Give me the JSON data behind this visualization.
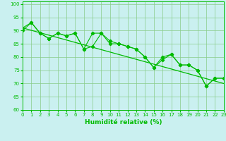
{
  "line1_x": [
    0,
    1,
    2,
    3,
    4,
    5,
    6,
    7,
    8,
    9,
    10,
    11,
    12,
    13,
    14,
    15,
    16,
    17,
    18,
    19,
    20,
    21,
    22,
    23
  ],
  "line1_y": [
    90,
    93,
    89,
    87,
    89,
    88,
    89,
    83,
    89,
    89,
    85,
    85,
    84,
    83,
    80,
    76,
    80,
    81,
    77,
    77,
    75,
    69,
    72,
    72
  ],
  "line2_x": [
    0,
    1,
    2,
    3,
    4,
    5,
    6,
    7,
    8,
    9,
    10,
    11,
    12,
    13,
    14,
    15,
    16,
    17,
    18,
    19,
    20,
    21,
    22,
    23
  ],
  "line2_y": [
    91,
    93,
    89,
    87,
    89,
    88,
    89,
    83,
    84,
    89,
    86,
    85,
    84,
    83,
    80,
    76,
    79,
    81,
    77,
    77,
    75,
    69,
    72,
    72
  ],
  "trend_x": [
    0,
    23
  ],
  "trend_y": [
    91,
    70
  ],
  "line_color": "#00bb00",
  "bg_color": "#caf0f0",
  "grid_color": "#88cc88",
  "xlabel": "Humidité relative (%)",
  "xlim": [
    0,
    23
  ],
  "ylim": [
    60,
    101
  ],
  "yticks": [
    60,
    65,
    70,
    75,
    80,
    85,
    90,
    95,
    100
  ],
  "xticks": [
    0,
    1,
    2,
    3,
    4,
    5,
    6,
    7,
    8,
    9,
    10,
    11,
    12,
    13,
    14,
    15,
    16,
    17,
    18,
    19,
    20,
    21,
    22,
    23
  ],
  "xlabel_fontsize": 6.5,
  "tick_fontsize": 5.0
}
